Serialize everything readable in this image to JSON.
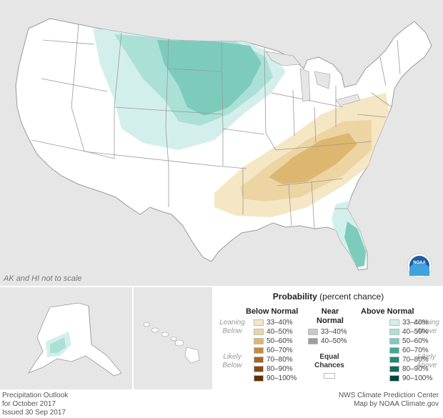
{
  "map": {
    "note": "AK and HI not to scale",
    "colors": {
      "land": "#ffffff",
      "water": "#e6e6e6",
      "border": "#9a9a9a"
    }
  },
  "legend": {
    "title": "Probability",
    "title_suffix": "(percent chance)",
    "below": {
      "heading": "Below Normal",
      "leaning_label": "Leaning\nBelow",
      "likely_label": "Likely\nBelow",
      "bins": [
        {
          "label": "33–40%",
          "color": "#f5e6c4"
        },
        {
          "label": "40–50%",
          "color": "#ecd5a3"
        },
        {
          "label": "50–60%",
          "color": "#ddb76f"
        },
        {
          "label": "60–70%",
          "color": "#c58b3e"
        },
        {
          "label": "70–80%",
          "color": "#a5671f"
        },
        {
          "label": "80–90%",
          "color": "#844a10"
        },
        {
          "label": "90–100%",
          "color": "#5c3206"
        }
      ]
    },
    "near": {
      "heading": "Near\nNormal",
      "bins": [
        {
          "label": "33–40%",
          "color": "#c9c9c9"
        },
        {
          "label": "40–50%",
          "color": "#9d9d9d"
        }
      ],
      "equal_label": "Equal\nChances",
      "equal_color": "#ffffff"
    },
    "above": {
      "heading": "Above Normal",
      "leaning_label": "Leaning\nAbove",
      "likely_label": "Likely\nAbove",
      "bins": [
        {
          "label": "33–40%",
          "color": "#d3efeb"
        },
        {
          "label": "40–50%",
          "color": "#abe0d6"
        },
        {
          "label": "50–60%",
          "color": "#7ccbbb"
        },
        {
          "label": "60–70%",
          "color": "#3fa893"
        },
        {
          "label": "70–80%",
          "color": "#1b8c77"
        },
        {
          "label": "80–90%",
          "color": "#0d6c5b"
        },
        {
          "label": "90–100%",
          "color": "#04463a"
        }
      ]
    }
  },
  "footer": {
    "left": [
      "Precipitation Outlook",
      "for October 2017",
      "Issued 30 Sep 2017"
    ],
    "right": [
      "NWS Climate Prediction Center",
      "Map by NOAA Climate.gov"
    ]
  },
  "logo": {
    "text": "NOAA"
  }
}
